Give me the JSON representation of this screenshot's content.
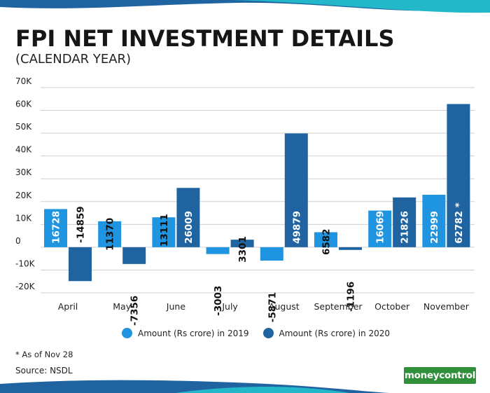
{
  "header": {
    "title": "FPI NET INVESTMENT DETAILS",
    "subtitle": "(CALENDAR YEAR)"
  },
  "legend": {
    "item_2019": "Amount (Rs crore) in 2019",
    "item_2020": "Amount (Rs crore) in 2020"
  },
  "footer": {
    "footnote": "* As of Nov 28",
    "source": "Source: NSDL",
    "logo_text": "moneycontrol"
  },
  "colors": {
    "series_2019": "#1f94e0",
    "series_2020": "#1f64a0",
    "grid": "#cfcfcf",
    "wave_light": "#22b8c9",
    "wave_dark": "#1f64a0",
    "logo_bg": "#2f8f3a"
  },
  "chart_data": {
    "type": "bar",
    "categories": [
      "April",
      "May",
      "June",
      "July",
      "August",
      "September",
      "October",
      "November"
    ],
    "series": [
      {
        "name": "Amount (Rs crore) in 2019",
        "values": [
          16728,
          11370,
          13111,
          -3003,
          -5871,
          6582,
          16069,
          22999
        ],
        "labels": [
          "16728",
          "11370",
          "13111",
          "-3003",
          "-5871",
          "6582",
          "16069",
          "22999"
        ]
      },
      {
        "name": "Amount (Rs crore) in 2020",
        "values": [
          -14859,
          -7356,
          26009,
          3301,
          49879,
          -1196,
          21826,
          62782
        ],
        "labels": [
          "-14859",
          "-7356",
          "26009",
          "3301",
          "49879",
          "-1196",
          "21826",
          "62782 *"
        ]
      }
    ],
    "y_ticks": [
      70000,
      60000,
      50000,
      40000,
      30000,
      20000,
      10000,
      0,
      -10000,
      -20000
    ],
    "y_tick_labels": [
      "70K",
      "60K",
      "50K",
      "40K",
      "30K",
      "20K",
      "10K",
      "0",
      "-10K",
      "-20K"
    ],
    "ylim": [
      -20000,
      70000
    ],
    "grid": true,
    "legend_position": "bottom"
  }
}
